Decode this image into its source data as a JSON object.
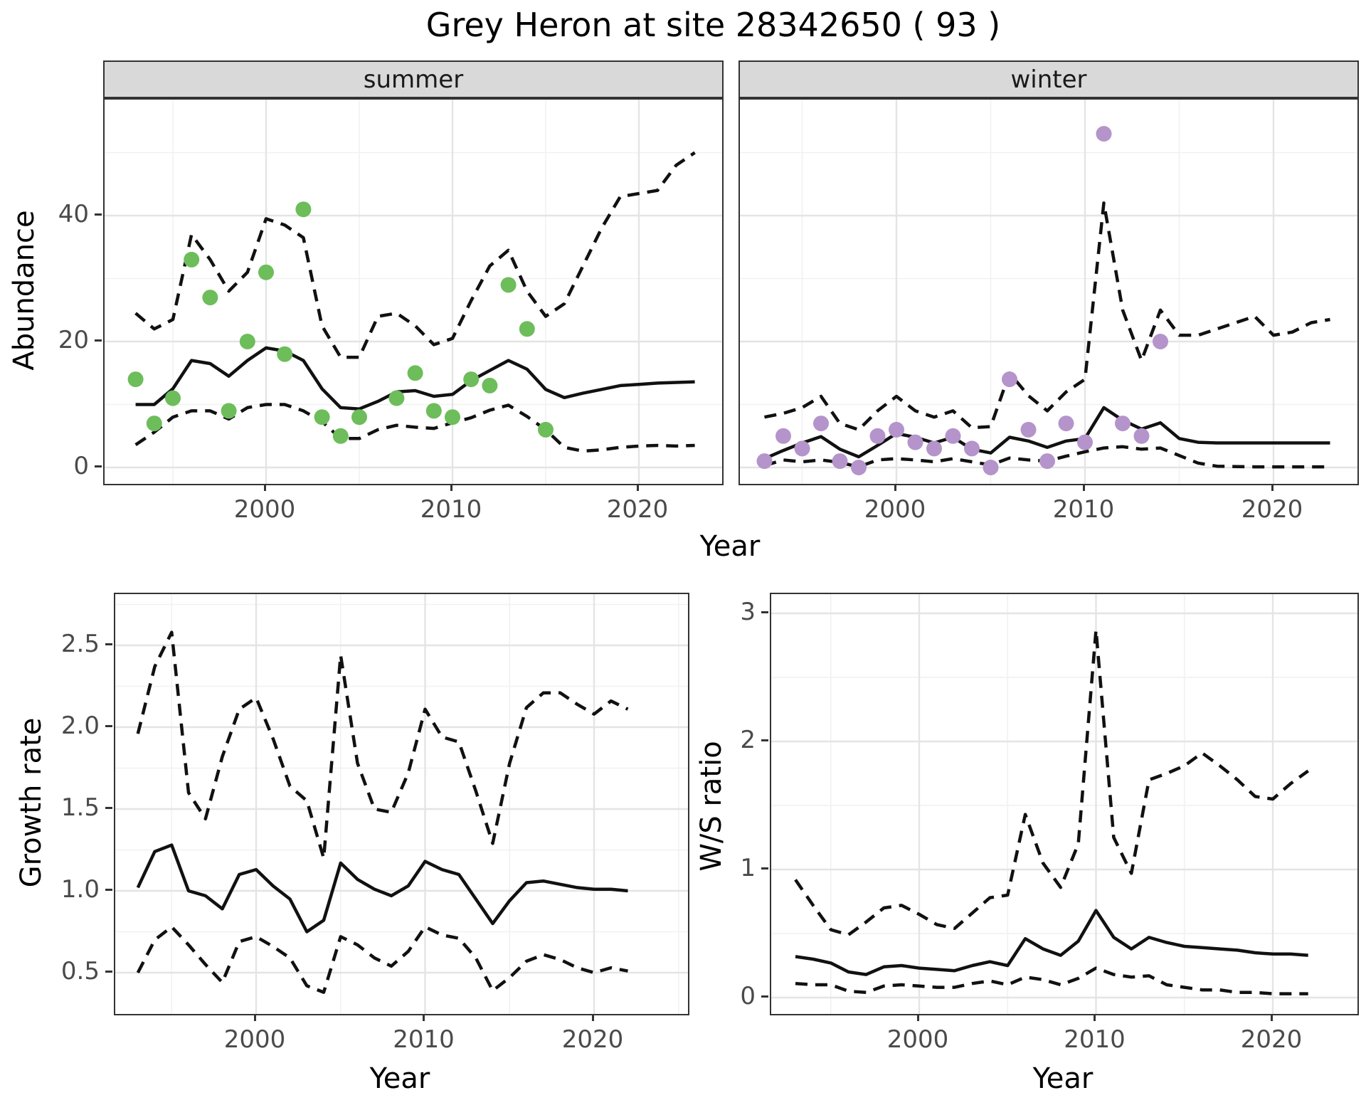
{
  "title": "Grey Heron at site 28342650 ( 93 )",
  "colors": {
    "summer_point": "#6dbd5b",
    "winter_point": "#b494ca",
    "line": "#111111",
    "grid_major": "#e4e4e4",
    "grid_minor": "#f1f1f1",
    "panel_border": "#333333",
    "strip_bg": "#d9d9d9",
    "tick_text": "#4a4a4a"
  },
  "chart_data": [
    {
      "id": "summer",
      "type": "line",
      "facet_label": "summer",
      "ylabel": "Abundance",
      "xlabel": "Year",
      "xlim": [
        1991.4,
        2024.6
      ],
      "ylim": [
        -2.5,
        58
      ],
      "x_ticks": {
        "major": [
          2000,
          2010,
          2020
        ],
        "minor": [
          1995,
          2005,
          2015
        ],
        "labels": [
          "2000",
          "2010",
          "2020"
        ]
      },
      "y_ticks": {
        "major": [
          0,
          20,
          40
        ],
        "minor": [
          10,
          30,
          50
        ],
        "labels": [
          "0",
          "20",
          "40"
        ]
      },
      "legend": "none",
      "grid": true,
      "observed": {
        "x": [
          1993,
          1994,
          1995,
          1996,
          1997,
          1998,
          1999,
          2000,
          2001,
          2002,
          2003,
          2004,
          2005,
          2007,
          2008,
          2009,
          2010,
          2011,
          2012,
          2013,
          2014,
          2015
        ],
        "y": [
          14,
          7,
          11,
          33,
          27,
          9,
          20,
          31,
          18,
          41,
          8,
          5,
          8,
          11,
          15,
          9,
          8,
          14,
          13,
          29,
          22,
          6
        ]
      },
      "fit": {
        "x": [
          1993,
          1994,
          1995,
          1996,
          1997,
          1998,
          1999,
          2000,
          2001,
          2002,
          2003,
          2004,
          2005,
          2006,
          2007,
          2008,
          2009,
          2010,
          2011,
          2012,
          2013,
          2014,
          2015,
          2016,
          2017,
          2018,
          2019,
          2020,
          2021,
          2022,
          2023
        ],
        "y": [
          10,
          10,
          12.5,
          17,
          16.5,
          14.5,
          17,
          19,
          18.5,
          17,
          12.5,
          9.5,
          9.3,
          10.5,
          12,
          12.2,
          11.3,
          11.6,
          13.8,
          15.4,
          17,
          15.6,
          12.4,
          11.1,
          11.8,
          12.4,
          13,
          13.2,
          13.4,
          13.5,
          13.6
        ]
      },
      "upper": {
        "x": [
          1993,
          1994,
          1995,
          1996,
          1997,
          1998,
          1999,
          2000,
          2001,
          2002,
          2003,
          2004,
          2005,
          2006,
          2007,
          2008,
          2009,
          2010,
          2011,
          2012,
          2013,
          2014,
          2015,
          2016,
          2017,
          2018,
          2019,
          2020,
          2021,
          2022,
          2023
        ],
        "y": [
          24.5,
          22,
          23.5,
          37,
          33,
          28,
          31,
          39.5,
          38.5,
          36.5,
          22.5,
          17.5,
          17.5,
          24,
          24.5,
          22.5,
          19.5,
          20.5,
          26.5,
          32,
          34.5,
          28,
          24,
          26,
          32,
          38,
          43,
          43.5,
          44,
          48,
          50
        ]
      },
      "lower": {
        "x": [
          1993,
          1994,
          1995,
          1996,
          1997,
          1998,
          1999,
          2000,
          2001,
          2002,
          2003,
          2004,
          2005,
          2006,
          2007,
          2008,
          2009,
          2010,
          2011,
          2012,
          2013,
          2014,
          2015,
          2016,
          2017,
          2018,
          2019,
          2020,
          2021,
          2022,
          2023
        ],
        "y": [
          3.6,
          5.6,
          8,
          9,
          9,
          7.7,
          9.5,
          10,
          10,
          9,
          7.3,
          4.6,
          4.6,
          6,
          6.7,
          6.4,
          6.2,
          7.1,
          7.9,
          9.1,
          9.9,
          8.1,
          6,
          3.2,
          2.6,
          2.8,
          3.2,
          3.4,
          3.5,
          3.4,
          3.5
        ]
      }
    },
    {
      "id": "winter",
      "type": "line",
      "facet_label": "winter",
      "ylabel": "Abundance",
      "xlabel": "Year",
      "xlim": [
        1991.7,
        2024.4
      ],
      "ylim": [
        -2.5,
        58
      ],
      "x_ticks": {
        "major": [
          2000,
          2010,
          2020
        ],
        "minor": [
          1995,
          2005,
          2015
        ],
        "labels": [
          "2000",
          "2010",
          "2020"
        ]
      },
      "y_ticks": {
        "major": [
          0,
          20,
          40
        ],
        "minor": [
          10,
          30,
          50
        ],
        "labels": []
      },
      "legend": "none",
      "grid": true,
      "observed": {
        "x": [
          1993,
          1994,
          1995,
          1996,
          1997,
          1998,
          1999,
          2000,
          2001,
          2002,
          2003,
          2004,
          2005,
          2006,
          2007,
          2008,
          2009,
          2010,
          2011,
          2012,
          2013,
          2014
        ],
        "y": [
          1,
          5,
          3,
          7,
          1,
          0,
          5,
          6,
          4,
          3,
          5,
          3,
          0,
          14,
          6,
          1,
          7,
          4,
          53,
          7,
          5,
          20
        ]
      },
      "fit": {
        "x": [
          1993,
          1994,
          1995,
          1996,
          1997,
          1998,
          1999,
          2000,
          2001,
          2002,
          2003,
          2004,
          2005,
          2006,
          2007,
          2008,
          2009,
          2010,
          2011,
          2012,
          2013,
          2014,
          2015,
          2016,
          2017,
          2018,
          2019,
          2020,
          2021,
          2022,
          2023
        ],
        "y": [
          1.4,
          2.7,
          3.9,
          4.9,
          2.9,
          1.7,
          3.5,
          5.4,
          4.8,
          3.9,
          4.8,
          2.9,
          2.3,
          4.8,
          4.2,
          3.2,
          4.2,
          4.6,
          9.5,
          7.5,
          6.1,
          7.1,
          4.6,
          4,
          3.9,
          3.9,
          3.9,
          3.9,
          3.9,
          3.9,
          3.9
        ]
      },
      "upper": {
        "x": [
          1993,
          1994,
          1995,
          1996,
          1997,
          1998,
          1999,
          2000,
          2001,
          2002,
          2003,
          2004,
          2005,
          2006,
          2007,
          2008,
          2009,
          2010,
          2011,
          2012,
          2013,
          2014,
          2015,
          2016,
          2017,
          2018,
          2019,
          2020,
          2021,
          2022,
          2023
        ],
        "y": [
          8,
          8.6,
          9.5,
          11.3,
          7,
          6,
          9,
          11.3,
          9,
          8,
          9,
          6.3,
          6.5,
          15,
          11.4,
          9,
          12,
          14,
          42,
          25,
          17,
          25,
          21,
          21,
          22,
          23,
          24,
          21,
          21.5,
          23,
          23.5
        ]
      },
      "lower": {
        "x": [
          1993,
          1994,
          1995,
          1996,
          1997,
          1998,
          1999,
          2000,
          2001,
          2002,
          2003,
          2004,
          2005,
          2006,
          2007,
          2008,
          2009,
          2010,
          2011,
          2012,
          2013,
          2014,
          2015,
          2016,
          2017,
          2018,
          2019,
          2020,
          2021,
          2022,
          2023
        ],
        "y": [
          0.3,
          1.2,
          0.9,
          1.2,
          0.8,
          0.1,
          1.2,
          1.4,
          1.2,
          0.9,
          1.4,
          0.9,
          0.4,
          1.5,
          1.2,
          1,
          1.8,
          2.5,
          3.1,
          3.3,
          2.9,
          3.1,
          1.9,
          0.7,
          0.2,
          0.15,
          0.1,
          0.1,
          0.1,
          0.1,
          0.1
        ]
      }
    },
    {
      "id": "growth",
      "type": "line",
      "facet_label": "",
      "ylabel": "Growth rate",
      "xlabel": "Year",
      "xlim": [
        1991.6,
        2025.5
      ],
      "ylim": [
        0.25,
        2.81
      ],
      "x_ticks": {
        "major": [
          2000,
          2010,
          2020
        ],
        "minor": [
          1995,
          2005,
          2015,
          2025
        ],
        "labels": [
          "2000",
          "2010",
          "2020"
        ]
      },
      "y_ticks": {
        "major": [
          0.5,
          1.0,
          1.5,
          2.0,
          2.5
        ],
        "minor": [
          0.75,
          1.25,
          1.75,
          2.25,
          2.75
        ],
        "labels": [
          "0.5",
          "1.0",
          "1.5",
          "2.0",
          "2.5"
        ]
      },
      "legend": "none",
      "grid": true,
      "fit": {
        "x": [
          1993,
          1994,
          1995,
          1996,
          1997,
          1998,
          1999,
          2000,
          2001,
          2002,
          2003,
          2004,
          2005,
          2006,
          2007,
          2008,
          2009,
          2010,
          2011,
          2012,
          2013,
          2014,
          2015,
          2016,
          2017,
          2018,
          2019,
          2020,
          2021,
          2022
        ],
        "y": [
          1.02,
          1.24,
          1.28,
          1.0,
          0.97,
          0.89,
          1.1,
          1.13,
          1.03,
          0.95,
          0.75,
          0.82,
          1.17,
          1.07,
          1.01,
          0.97,
          1.03,
          1.18,
          1.13,
          1.1,
          0.95,
          0.8,
          0.94,
          1.05,
          1.06,
          1.04,
          1.02,
          1.01,
          1.01,
          1.0
        ]
      },
      "upper": {
        "x": [
          1993,
          1994,
          1995,
          1996,
          1997,
          1998,
          1999,
          2000,
          2001,
          2002,
          2003,
          2004,
          2005,
          2006,
          2007,
          2008,
          2009,
          2010,
          2011,
          2012,
          2013,
          2014,
          2015,
          2016,
          2017,
          2018,
          2019,
          2020,
          2021,
          2022
        ],
        "y": [
          1.96,
          2.37,
          2.58,
          1.6,
          1.44,
          1.82,
          2.11,
          2.18,
          1.93,
          1.64,
          1.55,
          1.2,
          2.44,
          1.78,
          1.5,
          1.48,
          1.72,
          2.11,
          1.94,
          1.91,
          1.61,
          1.29,
          1.78,
          2.12,
          2.21,
          2.21,
          2.14,
          2.08,
          2.16,
          2.11
        ]
      },
      "lower": {
        "x": [
          1993,
          1994,
          1995,
          1996,
          1997,
          1998,
          1999,
          2000,
          2001,
          2002,
          2003,
          2004,
          2005,
          2006,
          2007,
          2008,
          2009,
          2010,
          2011,
          2012,
          2013,
          2014,
          2015,
          2016,
          2017,
          2018,
          2019,
          2020,
          2021,
          2022
        ],
        "y": [
          0.5,
          0.7,
          0.78,
          0.67,
          0.55,
          0.44,
          0.69,
          0.72,
          0.66,
          0.59,
          0.42,
          0.38,
          0.72,
          0.67,
          0.59,
          0.54,
          0.63,
          0.78,
          0.73,
          0.71,
          0.59,
          0.39,
          0.47,
          0.57,
          0.61,
          0.58,
          0.53,
          0.5,
          0.53,
          0.51
        ]
      }
    },
    {
      "id": "ws",
      "type": "line",
      "facet_label": "",
      "ylabel": "W/S ratio",
      "xlabel": "Year",
      "xlim": [
        1991.6,
        2024.9
      ],
      "ylim": [
        -0.1,
        3.15
      ],
      "x_ticks": {
        "major": [
          2000,
          2010,
          2020
        ],
        "minor": [
          1995,
          2005,
          2015
        ],
        "labels": [
          "2000",
          "2010",
          "2020"
        ]
      },
      "y_ticks": {
        "major": [
          0,
          1,
          2,
          3
        ],
        "minor": [
          0.5,
          1.5,
          2.5
        ],
        "labels": [
          "0",
          "1",
          "2",
          "3"
        ]
      },
      "legend": "none",
      "grid": true,
      "fit": {
        "x": [
          1993,
          1994,
          1995,
          1996,
          1997,
          1998,
          1999,
          2000,
          2001,
          2002,
          2003,
          2004,
          2005,
          2006,
          2007,
          2008,
          2009,
          2010,
          2011,
          2012,
          2013,
          2014,
          2015,
          2016,
          2017,
          2018,
          2019,
          2020,
          2021,
          2022
        ],
        "y": [
          0.32,
          0.3,
          0.27,
          0.2,
          0.18,
          0.24,
          0.25,
          0.23,
          0.22,
          0.21,
          0.25,
          0.28,
          0.25,
          0.46,
          0.38,
          0.33,
          0.44,
          0.68,
          0.47,
          0.38,
          0.47,
          0.43,
          0.4,
          0.39,
          0.38,
          0.37,
          0.35,
          0.34,
          0.34,
          0.33
        ]
      },
      "upper": {
        "x": [
          1993,
          1994,
          1995,
          1996,
          1997,
          1998,
          1999,
          2000,
          2001,
          2002,
          2003,
          2004,
          2005,
          2006,
          2007,
          2008,
          2009,
          2010,
          2011,
          2012,
          2013,
          2014,
          2015,
          2016,
          2017,
          2018,
          2019,
          2020,
          2021,
          2022
        ],
        "y": [
          0.92,
          0.72,
          0.53,
          0.49,
          0.59,
          0.7,
          0.72,
          0.65,
          0.57,
          0.54,
          0.66,
          0.78,
          0.8,
          1.43,
          1.05,
          0.86,
          1.2,
          2.87,
          1.25,
          0.97,
          1.7,
          1.75,
          1.81,
          1.91,
          1.81,
          1.7,
          1.57,
          1.55,
          1.67,
          1.77
        ]
      },
      "lower": {
        "x": [
          1993,
          1994,
          1995,
          1996,
          1997,
          1998,
          1999,
          2000,
          2001,
          2002,
          2003,
          2004,
          2005,
          2006,
          2007,
          2008,
          2009,
          2010,
          2011,
          2012,
          2013,
          2014,
          2015,
          2016,
          2017,
          2018,
          2019,
          2020,
          2021,
          2022
        ],
        "y": [
          0.11,
          0.1,
          0.1,
          0.05,
          0.04,
          0.09,
          0.1,
          0.09,
          0.08,
          0.08,
          0.11,
          0.13,
          0.1,
          0.16,
          0.14,
          0.1,
          0.15,
          0.23,
          0.18,
          0.16,
          0.17,
          0.1,
          0.08,
          0.06,
          0.06,
          0.04,
          0.04,
          0.03,
          0.03,
          0.03
        ]
      }
    }
  ]
}
